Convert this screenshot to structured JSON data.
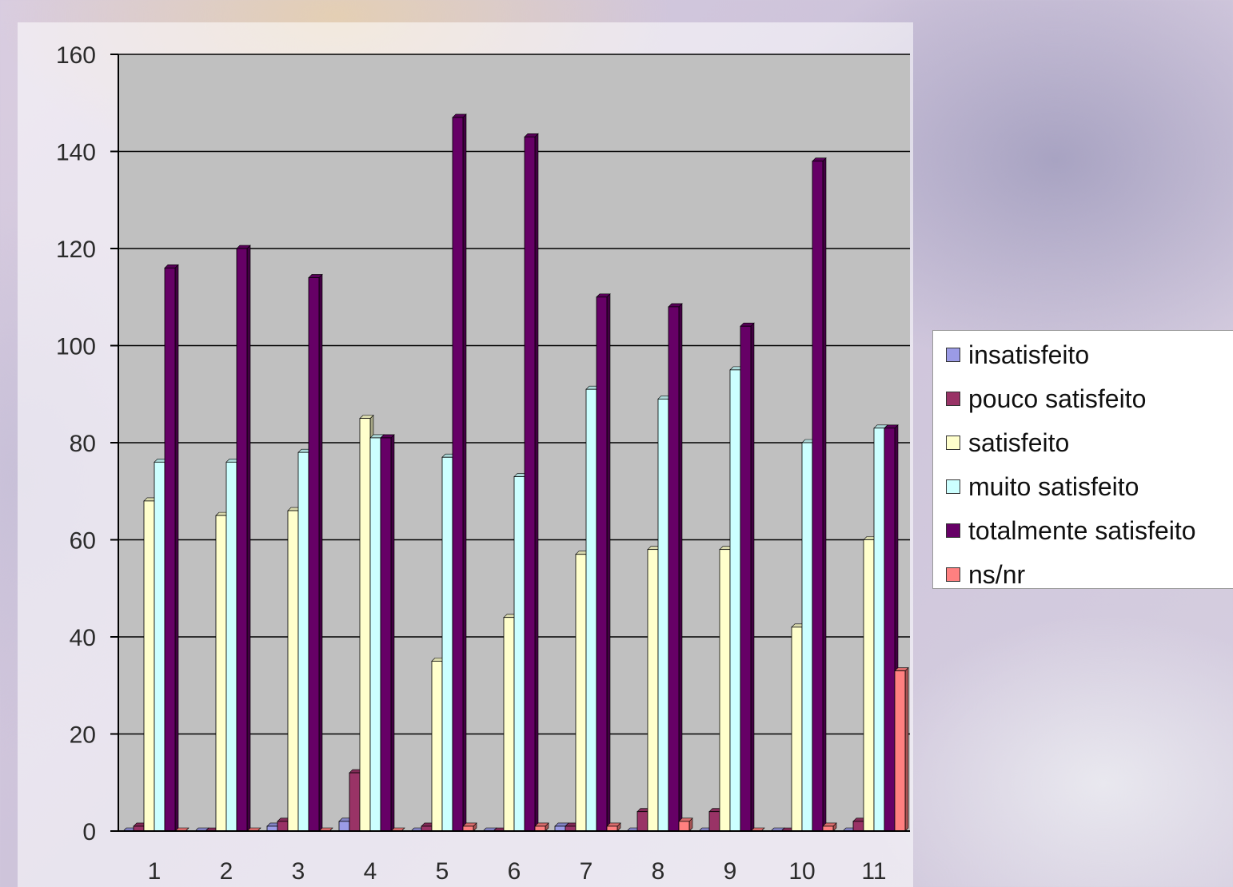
{
  "chart_data": {
    "type": "bar",
    "categories": [
      "1",
      "2",
      "3",
      "4",
      "5",
      "6",
      "7",
      "8",
      "9",
      "10",
      "11"
    ],
    "series": [
      {
        "name": "insatisfeito",
        "color": "#9b9be6",
        "values": [
          0,
          0,
          1,
          2,
          0,
          0,
          1,
          0,
          0,
          0,
          0
        ]
      },
      {
        "name": "pouco satisfeito",
        "color": "#993366",
        "values": [
          1,
          0,
          2,
          12,
          1,
          0,
          1,
          4,
          4,
          0,
          2
        ]
      },
      {
        "name": "satisfeito",
        "color": "#ffffcc",
        "values": [
          68,
          65,
          66,
          85,
          35,
          44,
          57,
          58,
          58,
          42,
          60
        ]
      },
      {
        "name": "muito satisfeito",
        "color": "#ccffff",
        "values": [
          76,
          76,
          78,
          81,
          77,
          73,
          91,
          89,
          95,
          80,
          83
        ]
      },
      {
        "name": "totalmente satisfeito",
        "color": "#660066",
        "values": [
          116,
          120,
          114,
          81,
          147,
          143,
          110,
          108,
          104,
          138,
          83
        ]
      },
      {
        "name": "ns/nr",
        "color": "#ff8080",
        "values": [
          0,
          0,
          0,
          0,
          1,
          1,
          1,
          2,
          0,
          1,
          33
        ]
      }
    ],
    "yticks": [
      0,
      20,
      40,
      60,
      80,
      100,
      120,
      140,
      160
    ],
    "ylim": [
      0,
      160
    ],
    "grid": true,
    "legend_position": "right"
  }
}
